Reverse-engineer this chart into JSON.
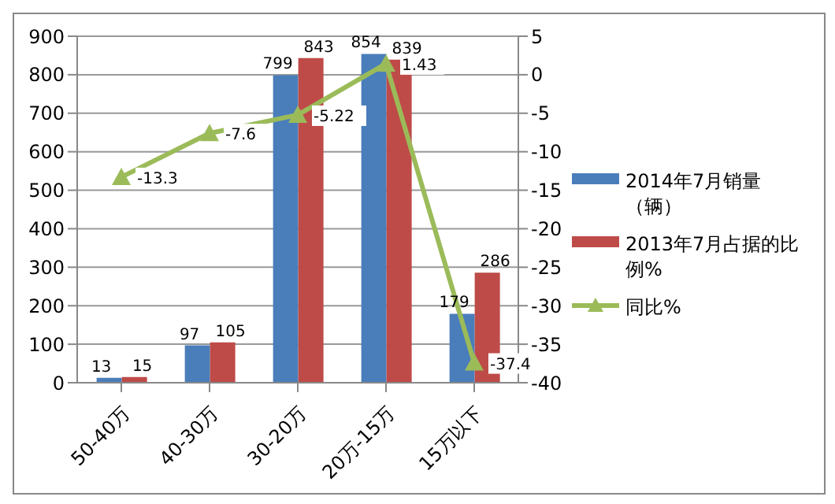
{
  "chart_data": {
    "type": "bar",
    "categories": [
      "50-40万",
      "40-30万",
      "30-20万",
      "20万-15万",
      "15万以下"
    ],
    "series": [
      {
        "name": "2014年7月销量（辆）",
        "color": "#4a7ebb",
        "values": [
          13,
          97,
          799,
          854,
          179
        ]
      },
      {
        "name": "2013年7月占据的比例%",
        "color": "#be4b48",
        "values": [
          15,
          105,
          843,
          839,
          286
        ]
      },
      {
        "name": "同比%",
        "type": "line",
        "axis": "y2",
        "color": "#9bbb59",
        "marker": "triangle",
        "values": [
          -13.3,
          -7.6,
          -5.22,
          1.43,
          -37.4
        ]
      }
    ],
    "ylim": [
      0,
      900
    ],
    "yticks": [
      0,
      100,
      200,
      300,
      400,
      500,
      600,
      700,
      800,
      900
    ],
    "y2lim": [
      -40,
      5
    ],
    "y2ticks": [
      -40,
      -35,
      -30,
      -25,
      -20,
      -15,
      -10,
      -5,
      0,
      5
    ],
    "grid": "y",
    "legend": "right",
    "data_labels": true
  }
}
